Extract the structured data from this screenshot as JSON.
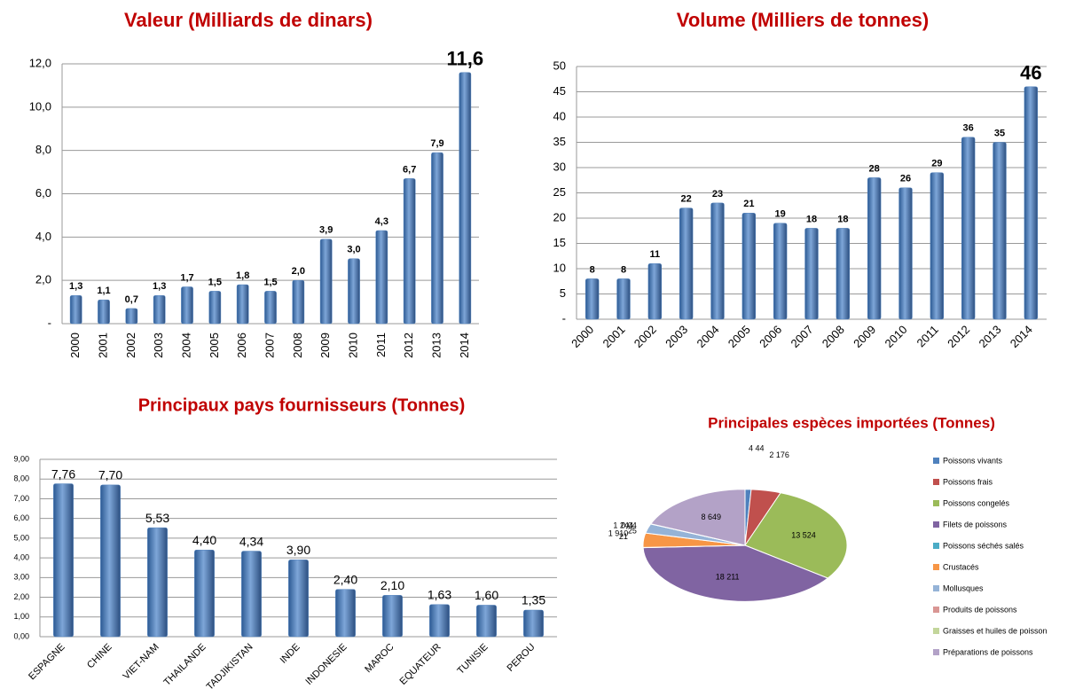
{
  "chart_data": [
    {
      "type": "bar",
      "title": "Valeur (Milliards de dinars)",
      "categories": [
        "2000",
        "2001",
        "2002",
        "2003",
        "2004",
        "2005",
        "2006",
        "2007",
        "2008",
        "2009",
        "2010",
        "2011",
        "2012",
        "2013",
        "2014"
      ],
      "values": [
        1.3,
        1.1,
        0.7,
        1.3,
        1.7,
        1.5,
        1.8,
        1.5,
        2.0,
        3.9,
        3.0,
        4.3,
        6.7,
        7.9,
        11.6
      ],
      "value_labels": [
        "1,3",
        "1,1",
        "0,7",
        "1,3",
        "1,7",
        "1,5",
        "1,8",
        "1,5",
        "2,0",
        "3,9",
        "3,0",
        "4,3",
        "6,7",
        "7,9",
        "11,6"
      ],
      "color": "#4f81bd",
      "ylim": [
        0,
        12
      ],
      "yticks": [
        {
          "value": 0,
          "label": "-"
        },
        {
          "value": 2,
          "label": "2,0"
        },
        {
          "value": 4,
          "label": "4,0"
        },
        {
          "value": 6,
          "label": "6,0"
        },
        {
          "value": 8,
          "label": "8,0"
        },
        {
          "value": 10,
          "label": "10,0"
        },
        {
          "value": 12,
          "label": "12,0"
        }
      ],
      "grid": true
    },
    {
      "type": "bar",
      "title": "Volume (Milliers de tonnes)",
      "categories": [
        "2000",
        "2001",
        "2002",
        "2003",
        "2004",
        "2005",
        "2006",
        "2007",
        "2008",
        "2009",
        "2010",
        "2011",
        "2012",
        "2013",
        "2014"
      ],
      "values": [
        8,
        8,
        11,
        22,
        23,
        21,
        19,
        18,
        18,
        28,
        26,
        29,
        36,
        35,
        46
      ],
      "color": "#4f81bd",
      "ylim": [
        0,
        50
      ],
      "yticks": [
        {
          "value": 0,
          "label": "-"
        },
        5,
        10,
        15,
        20,
        25,
        30,
        35,
        40,
        45,
        50
      ],
      "grid": true
    },
    {
      "type": "bar",
      "title": "Principaux pays fournisseurs  (Tonnes)",
      "categories": [
        "ESPAGNE",
        "CHINE",
        "VIET-NAM",
        "THAILANDE",
        "TADJIKISTAN",
        "INDE",
        "INDONESIE",
        "MAROC",
        "EQUATEUR",
        "TUNISIE",
        "PEROU"
      ],
      "values": [
        7.76,
        7.7,
        5.53,
        4.4,
        4.34,
        3.9,
        2.4,
        2.1,
        1.63,
        1.6,
        1.35
      ],
      "value_labels": [
        "7,76",
        "7,70",
        "5,53",
        "4,40",
        "4,34",
        "3,90",
        "2,40",
        "2,10",
        "1,63",
        "1,60",
        "1,35"
      ],
      "color": "#4f81bd",
      "ylim": [
        0,
        9
      ],
      "yticks": [
        {
          "value": 0,
          "label": "0,00"
        },
        {
          "value": 1,
          "label": "1,00"
        },
        {
          "value": 2,
          "label": "2,00"
        },
        {
          "value": 3,
          "label": "3,00"
        },
        {
          "value": 4,
          "label": "4,00"
        },
        {
          "value": 5,
          "label": "5,00"
        },
        {
          "value": 6,
          "label": "6,00"
        },
        {
          "value": 7,
          "label": "7,00"
        },
        {
          "value": 8,
          "label": "8,00"
        },
        {
          "value": 9,
          "label": "9,00"
        }
      ],
      "grid": true
    },
    {
      "type": "pie",
      "title": "Principales espèces importées (Tonnes)",
      "categories": [
        "Poissons vivants",
        "Poissons frais",
        "Poissons congelés",
        "Filets de poissons",
        "Poissons séchés salés",
        "Crustacés",
        "Mollusques",
        "Produits de poissons",
        "Graisses et huiles de poisson",
        "Préparations de poissons"
      ],
      "values": [
        444,
        2176,
        13524,
        18211,
        21,
        1910,
        1244,
        0.04,
        25,
        8649
      ],
      "value_labels": [
        "4 44",
        "2 176",
        "13 524",
        "18 211",
        "21",
        "1 910",
        "1 244",
        "0,04",
        "25",
        "8 649"
      ],
      "colors": [
        "#4f81bd",
        "#c0504d",
        "#9bbb59",
        "#8064a2",
        "#4bacc6",
        "#f79646",
        "#95b3d7",
        "#d99694",
        "#c3d69b",
        "#b3a2c7"
      ]
    }
  ]
}
